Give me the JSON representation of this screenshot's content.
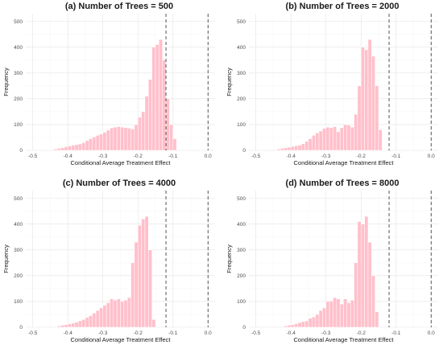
{
  "chart_data": [
    {
      "type": "histogram",
      "title": "(a) Number of Trees = 500",
      "xlabel": "Conditional Average Treatment Effect",
      "ylabel": "Frequency",
      "xlim": [
        -0.52,
        0.02
      ],
      "ylim": [
        0,
        530
      ],
      "xticks": [
        "-0.5",
        "-0.4",
        "-0.3",
        "-0.2",
        "-0.1",
        "0.0"
      ],
      "yticks": [
        "0",
        "100",
        "200",
        "300",
        "400",
        "500"
      ],
      "grid": true,
      "dashed_vlines": [
        -0.12,
        0.0
      ],
      "bin_width": 0.01,
      "bin_start": -0.44,
      "values": [
        5,
        8,
        10,
        14,
        17,
        20,
        22,
        25,
        30,
        38,
        45,
        52,
        58,
        63,
        70,
        78,
        87,
        90,
        92,
        90,
        88,
        86,
        83,
        100,
        128,
        150,
        210,
        275,
        400,
        410,
        430,
        350,
        200,
        100,
        45
      ]
    },
    {
      "type": "histogram",
      "title": "(b) Number of Trees = 2000",
      "xlabel": "Conditional Average Treatment Effect",
      "ylabel": "Frequency",
      "xlim": [
        -0.52,
        0.02
      ],
      "ylim": [
        0,
        530
      ],
      "xticks": [
        "-0.5",
        "-0.4",
        "-0.3",
        "-0.2",
        "-0.1",
        "0.0"
      ],
      "yticks": [
        "0",
        "100",
        "200",
        "300",
        "400",
        "500"
      ],
      "grid": true,
      "dashed_vlines": [
        -0.12,
        0.0
      ],
      "bin_width": 0.01,
      "bin_start": -0.44,
      "values": [
        5,
        8,
        10,
        12,
        15,
        18,
        20,
        26,
        35,
        45,
        58,
        68,
        75,
        85,
        90,
        88,
        92,
        72,
        88,
        100,
        98,
        90,
        140,
        250,
        400,
        390,
        430,
        365,
        250,
        80
      ]
    },
    {
      "type": "histogram",
      "title": "(c) Number of Trees = 4000",
      "xlabel": "Conditional Average Treatment Effect",
      "ylabel": "Frequency",
      "xlim": [
        -0.52,
        0.02
      ],
      "ylim": [
        0,
        530
      ],
      "xticks": [
        "-0.5",
        "-0.4",
        "-0.3",
        "-0.2",
        "-0.1",
        "0.0"
      ],
      "yticks": [
        "0",
        "100",
        "200",
        "300",
        "400",
        "500"
      ],
      "grid": true,
      "dashed_vlines": [
        -0.12,
        0.0
      ],
      "bin_width": 0.01,
      "bin_start": -0.43,
      "values": [
        5,
        8,
        10,
        13,
        16,
        20,
        25,
        30,
        38,
        45,
        55,
        65,
        75,
        85,
        95,
        110,
        105,
        110,
        100,
        105,
        115,
        250,
        330,
        395,
        420,
        430,
        300,
        30
      ]
    },
    {
      "type": "histogram",
      "title": "(d) Number of Trees = 8000",
      "xlabel": "Conditional Average Treatment Effect",
      "ylabel": "Frequency",
      "xlim": [
        -0.52,
        0.02
      ],
      "ylim": [
        0,
        530
      ],
      "xticks": [
        "-0.5",
        "-0.4",
        "-0.3",
        "-0.2",
        "-0.1",
        "0.0"
      ],
      "yticks": [
        "0",
        "100",
        "200",
        "300",
        "400",
        "500"
      ],
      "grid": true,
      "dashed_vlines": [
        -0.12,
        0.0
      ],
      "bin_width": 0.01,
      "bin_start": -0.42,
      "values": [
        5,
        8,
        10,
        14,
        18,
        22,
        25,
        35,
        40,
        50,
        65,
        75,
        100,
        102,
        115,
        110,
        90,
        110,
        95,
        105,
        250,
        410,
        400,
        430,
        330,
        200,
        60
      ]
    }
  ],
  "colors": {
    "bar_fill": "#ffc0cb",
    "bar_edge": "#ffffff",
    "reference_line": "#555555"
  }
}
